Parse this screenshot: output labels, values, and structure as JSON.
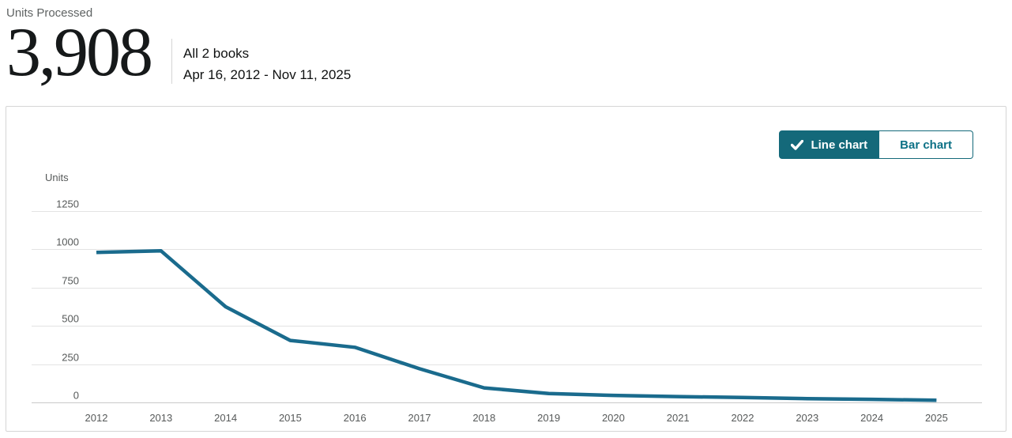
{
  "header": {
    "metric_label": "Units Processed",
    "metric_value": "3,908",
    "scope": "All 2 books",
    "date_range": "Apr 16, 2012 - Nov 11, 2025"
  },
  "toolbar": {
    "line_chart_label": "Line chart",
    "bar_chart_label": "Bar chart",
    "selected": "line"
  },
  "colors": {
    "accent_teal": "#14697a",
    "toggle_text_teal": "#0d7186",
    "line": "#1a6b8d",
    "grid": "#e3e3e3",
    "zero_line": "#c9c9c9",
    "axis_text": "#565959",
    "card_border": "#d5d5d5"
  },
  "chart_data": {
    "type": "line",
    "title": "",
    "ylabel": "Units",
    "xlabel": "",
    "categories": [
      "2012",
      "2013",
      "2014",
      "2015",
      "2016",
      "2017",
      "2018",
      "2019",
      "2020",
      "2021",
      "2022",
      "2023",
      "2024",
      "2025"
    ],
    "values": [
      980,
      990,
      625,
      405,
      360,
      220,
      95,
      58,
      46,
      38,
      32,
      25,
      20,
      14
    ],
    "yticks": [
      0,
      250,
      500,
      750,
      1000,
      1250
    ],
    "ylim": [
      0,
      1300
    ],
    "grid": true,
    "legend": "none"
  }
}
